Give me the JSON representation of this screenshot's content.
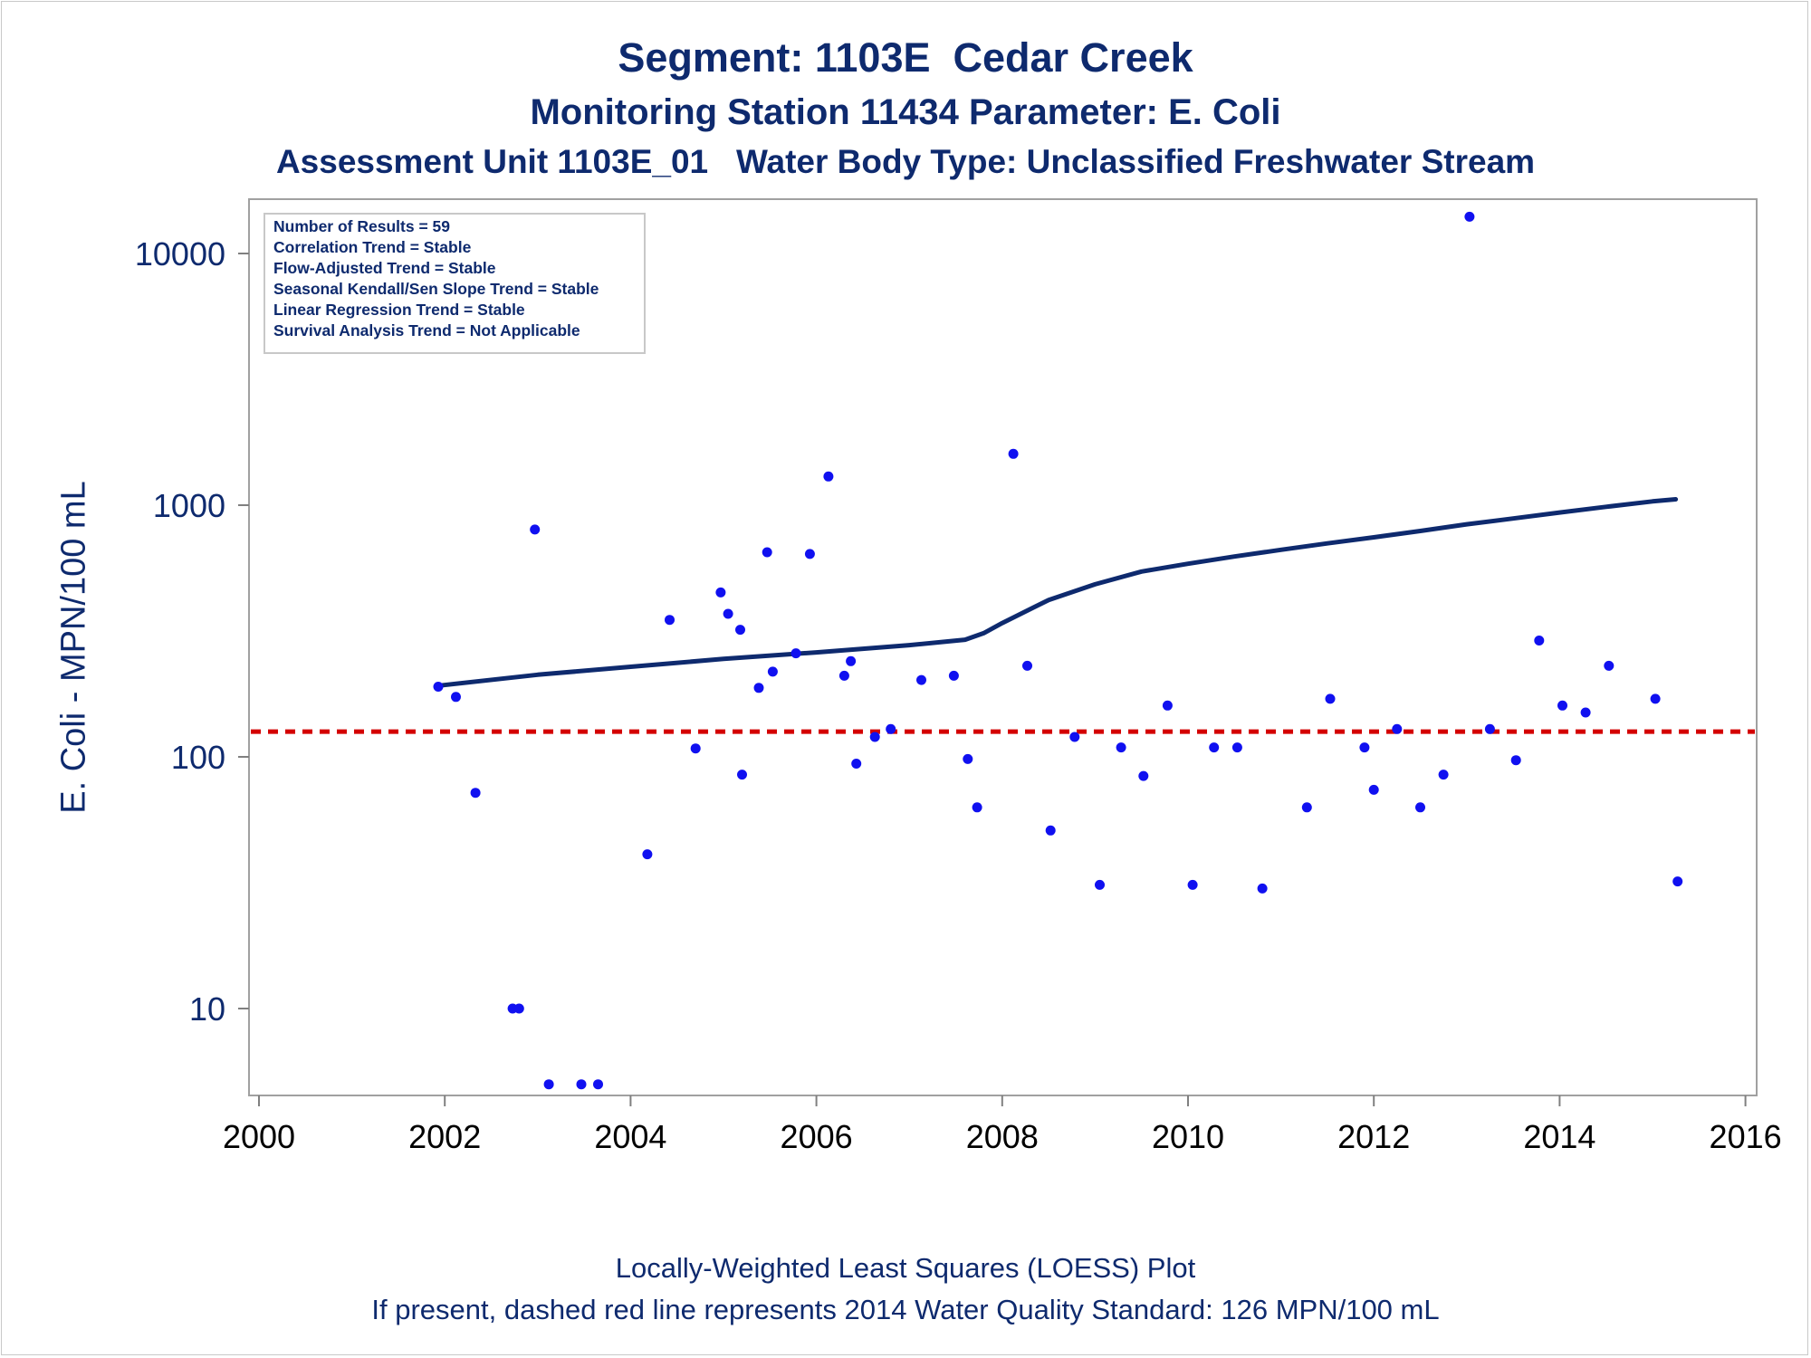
{
  "chart_data": {
    "type": "scatter",
    "title": "Segment: 1103E  Cedar Creek",
    "subtitle_1": "Monitoring Station 11434 Parameter: E. Coli",
    "subtitle_2": "Assessment Unit 1103E_01   Water Body Type: Unclassified Freshwater Stream",
    "ylabel": "E. Coli - MPN/100 mL",
    "xlabel": "",
    "y_scale": "log",
    "ylim": [
      4.5,
      16000
    ],
    "xlim": [
      1999.8,
      2016.2
    ],
    "x_ticks": [
      2000,
      2002,
      2004,
      2006,
      2008,
      2010,
      2012,
      2014,
      2016
    ],
    "x_tick_labels": [
      "2000",
      "2002",
      "2004",
      "2006",
      "2008",
      "2010",
      "2012",
      "2014",
      "2016"
    ],
    "y_ticks": [
      10,
      100,
      1000,
      10000
    ],
    "y_tick_labels": [
      "10",
      "100",
      "1000",
      "10000"
    ],
    "grid": false,
    "stats_box": {
      "placement": "top-left",
      "lines": [
        "Number of Results = 59",
        "Correlation Trend = Stable",
        "Flow-Adjusted Trend = Stable",
        "Seasonal Kendall/Sen Slope Trend = Stable",
        "Linear Regression Trend = Stable",
        "Survival Analysis Trend = Not Applicable"
      ]
    },
    "standard_line": {
      "value": 126,
      "style": "dashed",
      "color": "#d40000"
    },
    "series": [
      {
        "type": "scatter",
        "color": "#1010f0",
        "x": [
          2001.93,
          2002.12,
          2002.33,
          2002.73,
          2002.8,
          2002.97,
          2003.12,
          2003.47,
          2003.65,
          2004.18,
          2004.42,
          2004.7,
          2004.97,
          2005.05,
          2005.18,
          2005.2,
          2005.38,
          2005.47,
          2005.53,
          2005.78,
          2005.93,
          2006.13,
          2006.3,
          2006.37,
          2006.43,
          2006.63,
          2006.8,
          2007.13,
          2007.48,
          2007.63,
          2007.73,
          2008.12,
          2008.27,
          2008.52,
          2008.78,
          2009.05,
          2009.28,
          2009.52,
          2009.78,
          2010.05,
          2010.28,
          2010.53,
          2010.8,
          2011.28,
          2011.53,
          2011.9,
          2012.0,
          2012.25,
          2012.5,
          2012.75,
          2013.03,
          2013.25,
          2013.53,
          2013.78,
          2014.03,
          2014.28,
          2014.53,
          2015.03,
          2015.27
        ],
        "y": [
          190,
          173,
          72,
          10,
          10,
          800,
          5,
          5,
          5,
          41,
          350,
          108,
          450,
          370,
          320,
          85,
          188,
          650,
          218,
          258,
          640,
          1300,
          210,
          240,
          94,
          120,
          129,
          202,
          210,
          98,
          63,
          1600,
          230,
          51,
          120,
          31,
          109,
          84,
          160,
          31,
          109,
          109,
          30,
          63,
          170,
          109,
          74,
          129,
          63,
          85,
          14000,
          129,
          97,
          290,
          160,
          150,
          230,
          170,
          32
        ]
      },
      {
        "type": "line",
        "color": "#0e2a6e",
        "x": [
          2001.95,
          2003.0,
          2004.0,
          2005.0,
          2006.0,
          2007.0,
          2007.6,
          2007.8,
          2008.0,
          2008.5,
          2009.0,
          2009.5,
          2010.0,
          2010.5,
          2011.0,
          2011.5,
          2012.0,
          2012.5,
          2013.0,
          2013.5,
          2014.0,
          2014.5,
          2015.0,
          2015.25
        ],
        "y": [
          192,
          212,
          228,
          245,
          260,
          278,
          292,
          310,
          340,
          420,
          485,
          545,
          585,
          625,
          665,
          705,
          745,
          790,
          840,
          885,
          935,
          985,
          1035,
          1055
        ]
      }
    ]
  },
  "footnotes": {
    "line1": "Locally-Weighted Least Squares (LOESS) Plot",
    "line2": "If present, dashed red line represents 2014 Water Quality Standard: 126 MPN/100 mL"
  }
}
